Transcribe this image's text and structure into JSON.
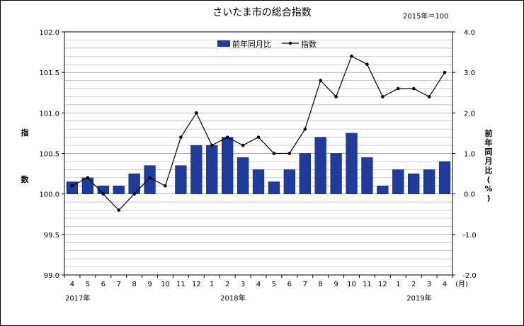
{
  "chart_data": {
    "type": "bar",
    "title": "さいたま市の総合指数",
    "base_note": "2015年＝100",
    "ylabel_left": [
      "指",
      "数"
    ],
    "ylabel_right": [
      "前",
      "年",
      "同",
      "月",
      "比",
      "(",
      "%",
      ")"
    ],
    "categories": [
      "4",
      "5",
      "6",
      "7",
      "8",
      "9",
      "10",
      "11",
      "12",
      "1",
      "2",
      "3",
      "4",
      "5",
      "6",
      "7",
      "8",
      "9",
      "10",
      "11",
      "12",
      "1",
      "2",
      "3",
      "4"
    ],
    "x_unit": "(月)",
    "year_labels": [
      {
        "text": "2017年",
        "index": 0
      },
      {
        "text": "2018年",
        "index": 10
      },
      {
        "text": "2019年",
        "index": 22
      }
    ],
    "left_axis": {
      "min": 99.0,
      "max": 102.0,
      "step": 0.1,
      "tick_labels": [
        "99.0",
        "99.5",
        "100.0",
        "100.5",
        "101.0",
        "101.5",
        "102.0"
      ],
      "tick_values": [
        99.0,
        99.5,
        100.0,
        100.5,
        101.0,
        101.5,
        102.0
      ]
    },
    "right_axis": {
      "min": -2.0,
      "max": 4.0,
      "tick_labels": [
        "-2.0",
        "-1.0",
        "0.0",
        "1.0",
        "2.0",
        "3.0",
        "4.0"
      ],
      "tick_values": [
        -2.0,
        -1.0,
        0.0,
        1.0,
        2.0,
        3.0,
        4.0
      ]
    },
    "legend_position": "top-center",
    "grid": true,
    "series": [
      {
        "name": "前年同月比",
        "type": "bar",
        "axis": "right",
        "color": "#1f3c9c",
        "values": [
          0.3,
          0.4,
          0.2,
          0.2,
          0.5,
          0.7,
          null,
          0.7,
          1.2,
          1.2,
          1.4,
          0.9,
          0.6,
          0.3,
          0.6,
          1.0,
          1.4,
          1.0,
          1.5,
          0.9,
          0.2,
          0.6,
          0.5,
          0.6,
          0.8
        ]
      },
      {
        "name": "指数",
        "type": "line",
        "axis": "left",
        "color": "#000000",
        "values": [
          100.1,
          100.2,
          100.0,
          99.8,
          100.0,
          100.2,
          100.1,
          100.7,
          101.0,
          100.6,
          100.7,
          100.6,
          100.7,
          100.5,
          100.5,
          100.8,
          101.4,
          101.2,
          101.7,
          101.6,
          101.2,
          101.3,
          101.3,
          101.2,
          101.5
        ]
      }
    ]
  }
}
